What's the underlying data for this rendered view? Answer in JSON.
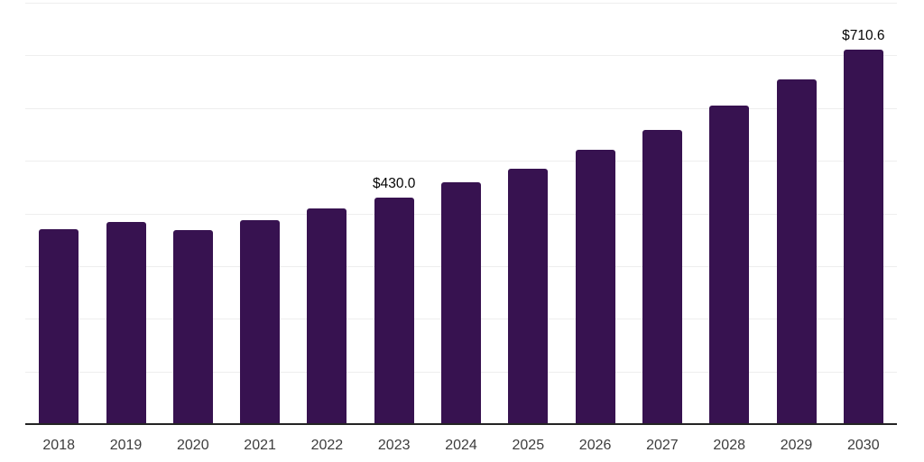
{
  "chart": {
    "background_color": "#ffffff",
    "bar_color": "#371250",
    "axis_line_color": "#242424",
    "gridline_color": "#eeeeee",
    "tick_label_color": "#3d3d3d",
    "data_label_color": "#050505"
  },
  "chart_data": {
    "type": "bar",
    "title": "",
    "xlabel": "",
    "ylabel": "",
    "categories": [
      "2018",
      "2019",
      "2020",
      "2021",
      "2022",
      "2023",
      "2024",
      "2025",
      "2026",
      "2027",
      "2028",
      "2029",
      "2030"
    ],
    "values": [
      370,
      383,
      368,
      388,
      409,
      430.0,
      459,
      485,
      520,
      559,
      604,
      655,
      710.6
    ],
    "data_labels": [
      {
        "index": 5,
        "text": "$430.0"
      },
      {
        "index": 12,
        "text": "$710.6"
      }
    ],
    "ylim": [
      0,
      800
    ],
    "gridline_step": 100,
    "grid": true,
    "legend": "none",
    "y_axis_labels_visible": false,
    "currency_prefix": "$"
  }
}
